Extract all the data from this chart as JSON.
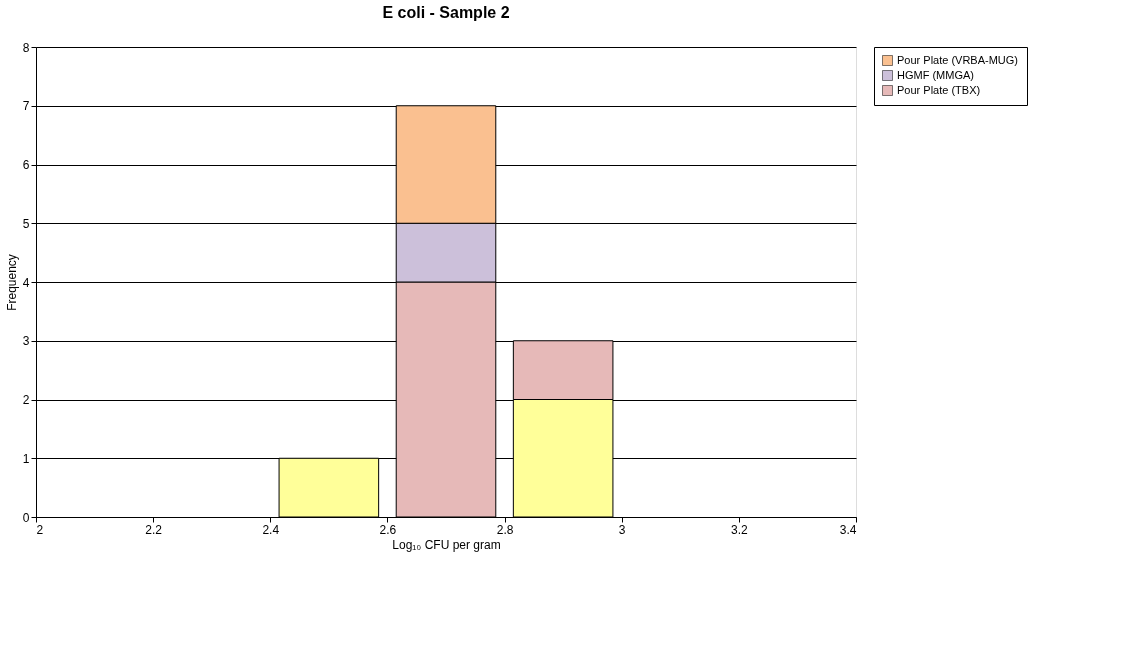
{
  "chart_data": {
    "type": "bar",
    "title": "E coli - Sample 2",
    "xlabel": "Log₁₀ CFU per gram",
    "ylabel": "Frequency",
    "x": [
      2.5,
      2.7,
      2.9
    ],
    "stacked": true,
    "series": [
      {
        "color": "#ffff99",
        "values": [
          1,
          0,
          2
        ]
      },
      {
        "name": "Pour Plate (TBX)",
        "color": "#e6b9b8",
        "values": [
          0,
          4,
          1
        ]
      },
      {
        "name": "HGMF (MMGA)",
        "color": "#ccc0da",
        "values": [
          0,
          1,
          0
        ]
      },
      {
        "name": "Pour Plate (VRBA-MUG)",
        "color": "#fac090",
        "values": [
          0,
          2,
          0
        ]
      }
    ],
    "xlim": [
      2,
      3.4
    ],
    "xticks": [
      2,
      2.2,
      2.4,
      2.6,
      2.8,
      3,
      3.2,
      3.4
    ],
    "ylim": [
      0,
      8
    ],
    "yticks": [
      0,
      1,
      2,
      3,
      4,
      5,
      6,
      7,
      8
    ],
    "grid": "y",
    "legend": "right"
  }
}
